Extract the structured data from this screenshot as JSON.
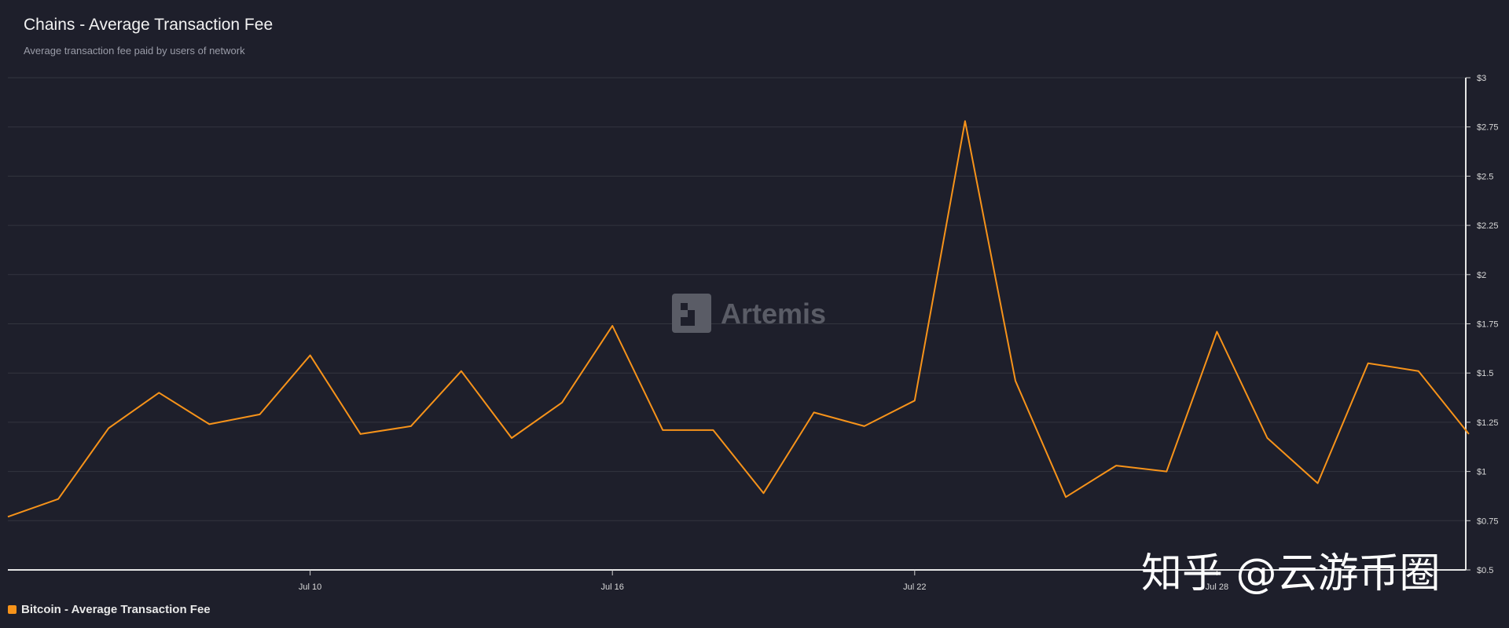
{
  "header": {
    "title": "Chains - Average Transaction Fee",
    "subtitle": "Average transaction fee paid by users of network"
  },
  "logo": {
    "text": "Artemis",
    "icon": "artemis-logo-icon"
  },
  "watermark": {
    "text": "知乎 @云游币圈"
  },
  "legend": {
    "label": "Bitcoin - Average Transaction Fee",
    "color": "#f7931a"
  },
  "chart_data": {
    "type": "line",
    "title": "Chains - Average Transaction Fee",
    "subtitle": "Average transaction fee paid by users of network",
    "xlabel": "",
    "ylabel": "",
    "x_tick_labels": [
      "Jul 10",
      "Jul 16",
      "Jul 22",
      "Jul 28"
    ],
    "y_tick_labels": [
      "$3",
      "$2.75",
      "$2.5",
      "$2.25",
      "$2",
      "$1.75",
      "$1.5",
      "$1.25",
      "$1",
      "$0.75",
      "$0.5"
    ],
    "ylim": [
      0.5,
      3
    ],
    "grid": true,
    "legend_position": "bottom-left",
    "x": [
      "Jul 4",
      "Jul 5",
      "Jul 6",
      "Jul 7",
      "Jul 8",
      "Jul 9",
      "Jul 10",
      "Jul 11",
      "Jul 12",
      "Jul 13",
      "Jul 14",
      "Jul 15",
      "Jul 16",
      "Jul 17",
      "Jul 18",
      "Jul 19",
      "Jul 20",
      "Jul 21",
      "Jul 22",
      "Jul 23",
      "Jul 24",
      "Jul 25",
      "Jul 26",
      "Jul 27",
      "Jul 28",
      "Jul 29",
      "Jul 30",
      "Jul 31",
      "Aug 1",
      "Aug 2"
    ],
    "series": [
      {
        "name": "Bitcoin - Average Transaction Fee",
        "color": "#f7931a",
        "values": [
          0.77,
          0.86,
          1.22,
          1.4,
          1.24,
          1.29,
          1.59,
          1.19,
          1.23,
          1.51,
          1.17,
          1.35,
          1.74,
          1.21,
          1.21,
          0.89,
          1.3,
          1.23,
          1.36,
          2.78,
          1.46,
          0.87,
          1.03,
          1.0,
          1.71,
          1.17,
          0.94,
          1.55,
          1.51,
          1.19
        ]
      }
    ]
  }
}
